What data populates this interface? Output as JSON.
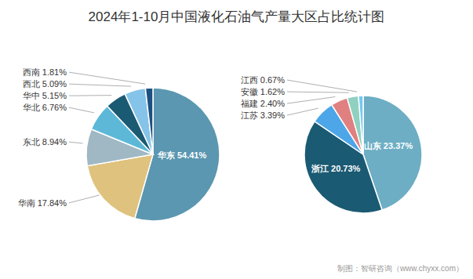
{
  "chart_data": [
    {
      "type": "pie",
      "title": "2024年1-10月中国液化石油气产量大区占比统计图",
      "annotations": [
        "制图：智研咨询（www.chyxx.com）"
      ],
      "categories": [
        "华东",
        "华南",
        "东北",
        "华北",
        "华中",
        "西北",
        "西南"
      ],
      "values": [
        54.41,
        17.84,
        8.94,
        6.76,
        5.15,
        5.09,
        1.81
      ],
      "colors": [
        "#5b97b0",
        "#dfc27d",
        "#9fb8c4",
        "#5db8d8",
        "#1b5a73",
        "#85c4e8",
        "#1c5080"
      ],
      "data_labels": true,
      "value_labels": [
        "华东 54.41%",
        "华南 17.84%",
        "东北 8.94%",
        "华北 6.76%",
        "华中 5.15%",
        "西北 5.09%",
        "西南 1.81%"
      ]
    },
    {
      "type": "pie",
      "categories": [
        "山东",
        "浙江",
        "江苏",
        "福建",
        "安徽",
        "江西"
      ],
      "values": [
        23.37,
        20.73,
        3.39,
        2.4,
        1.62,
        0.67
      ],
      "colors": [
        "#6daec4",
        "#1b5a73",
        "#4da6e8",
        "#e08080",
        "#90d0c0",
        "#75c8f0"
      ],
      "data_labels": true,
      "value_labels": [
        "山东 23.37%",
        "浙江 20.73%",
        "江苏 3.39%",
        "福建 2.40%",
        "安徽 1.62%",
        "江西 0.67%"
      ]
    }
  ]
}
